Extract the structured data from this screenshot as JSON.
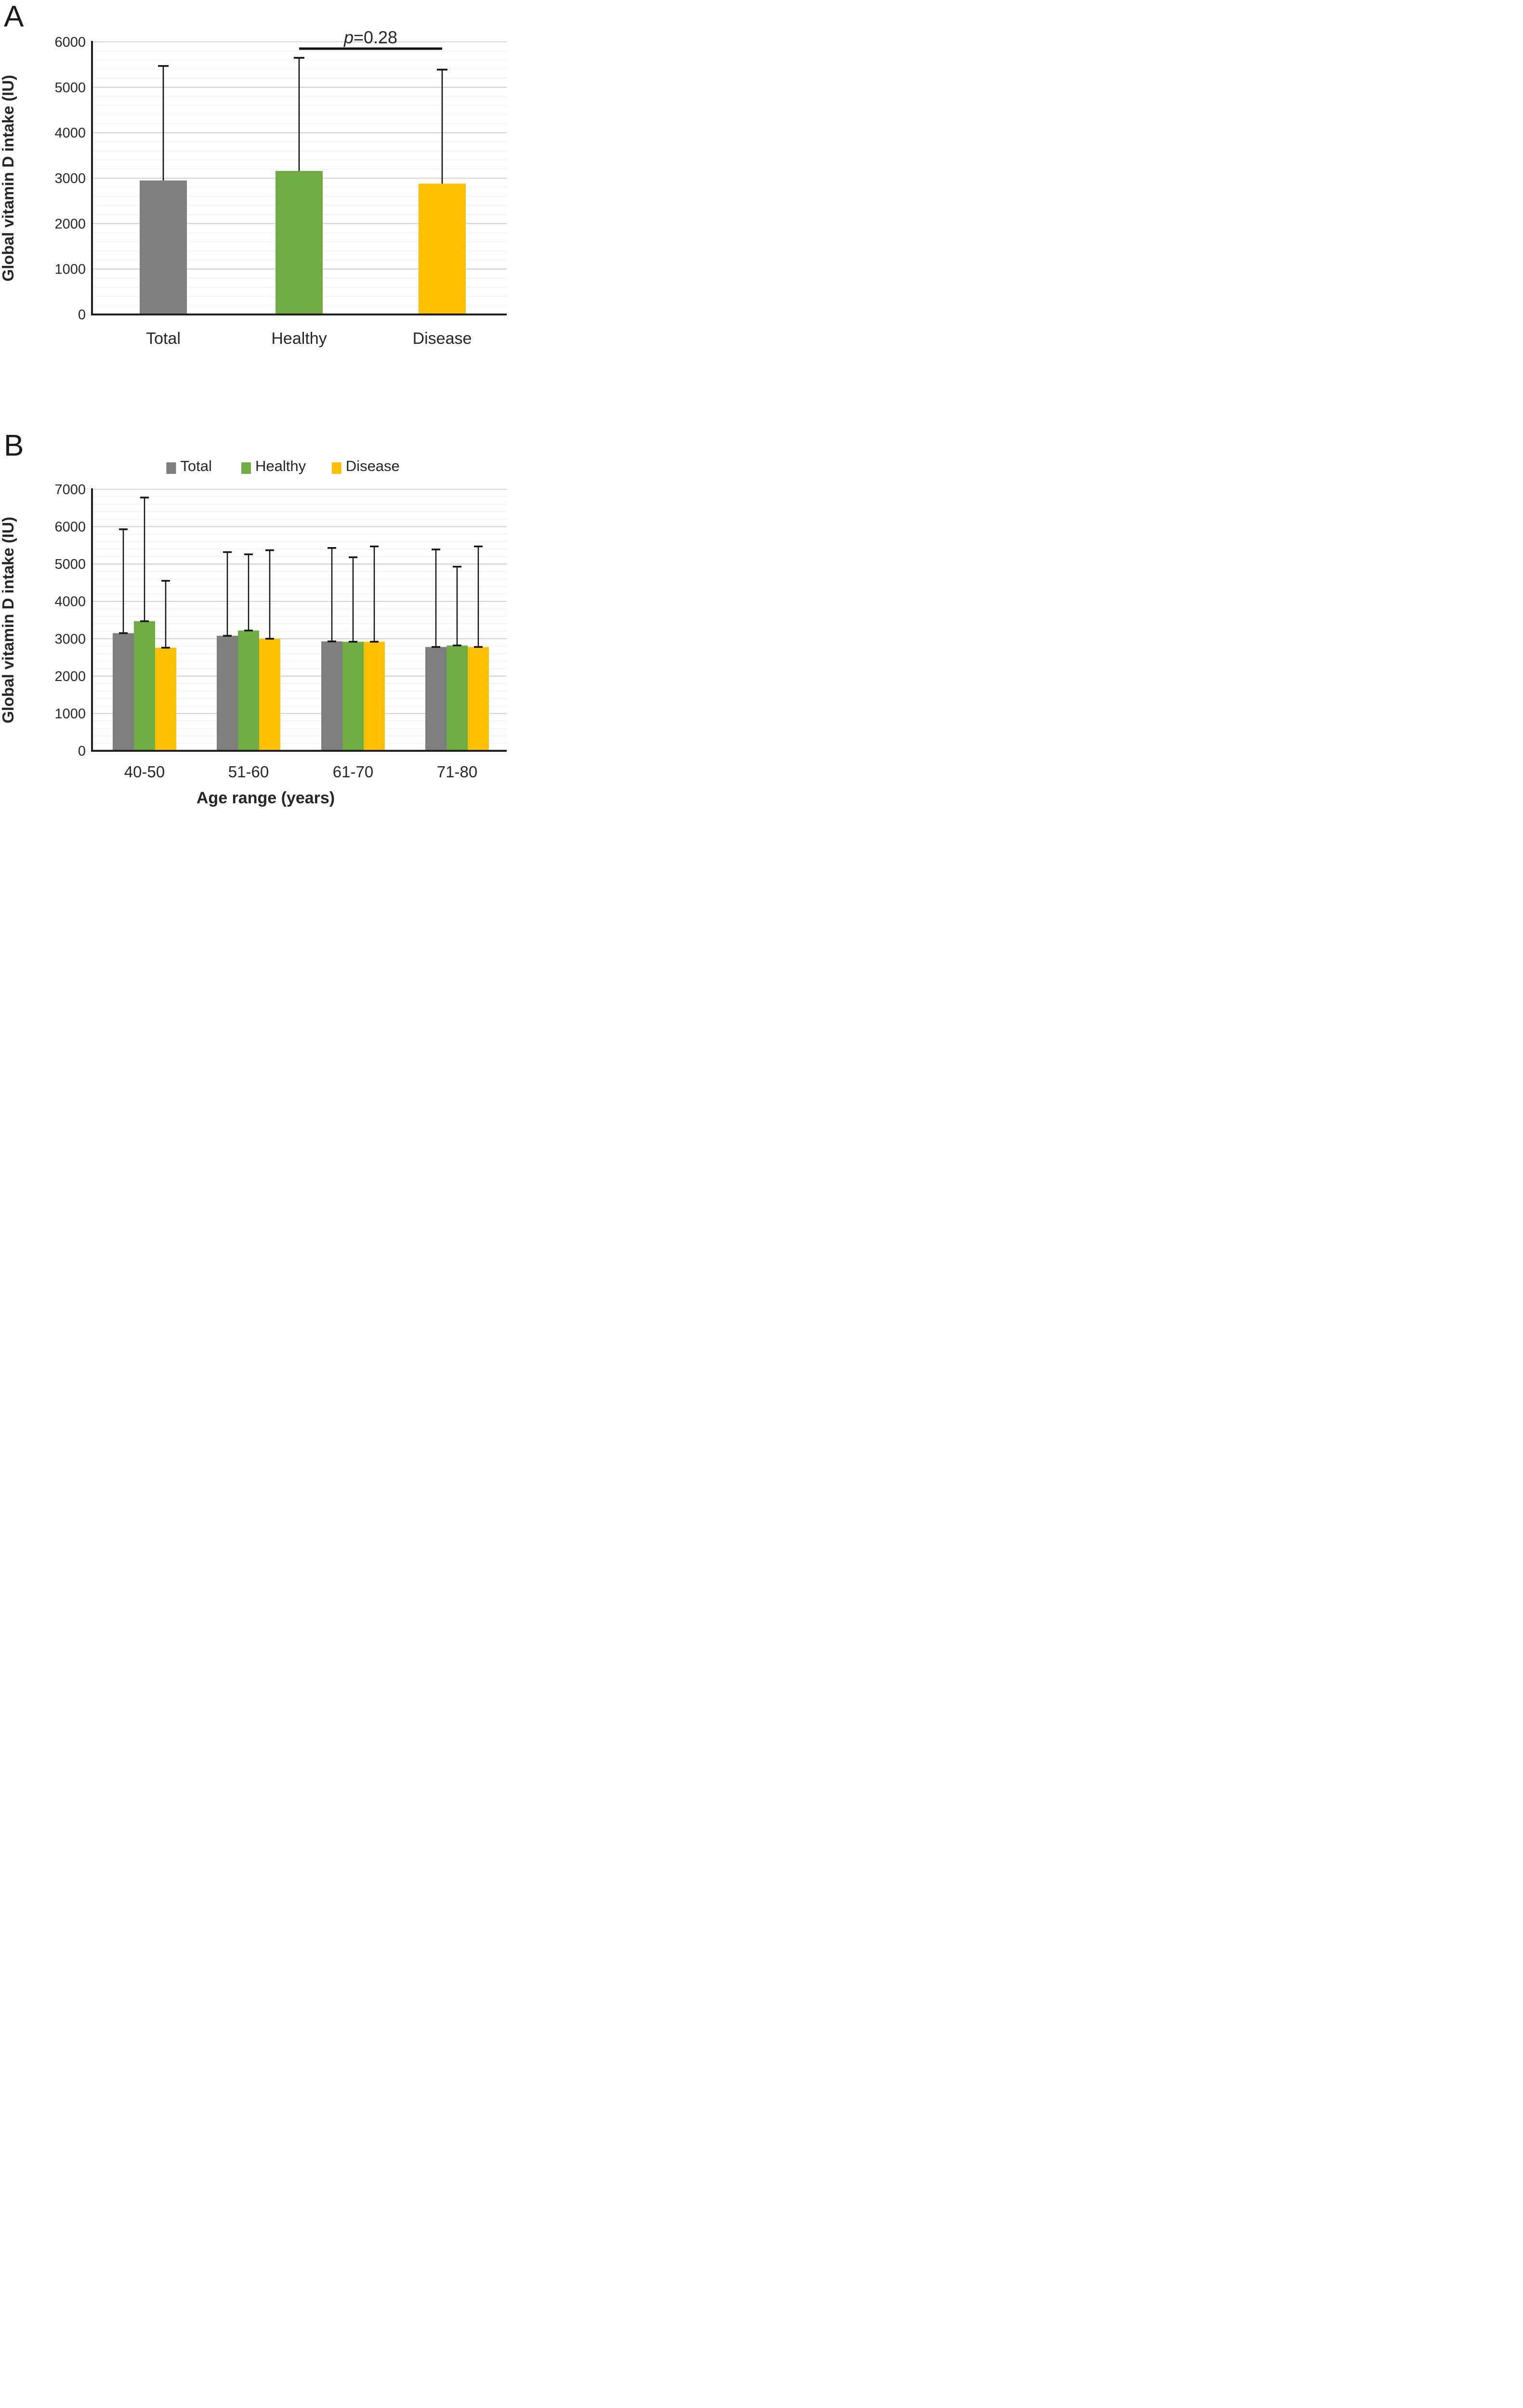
{
  "figure_title": "",
  "chart_data": [
    {
      "tag": "A",
      "type": "bar",
      "categories": [
        "Total",
        "Healthy",
        "Disease"
      ],
      "values": [
        2950,
        3160,
        2880
      ],
      "error_tops": [
        5470,
        5650,
        5390
      ],
      "bar_colors": [
        "#7F7F7F",
        "#6FAC46",
        "#FFC000"
      ],
      "ylabel": "Global vitamin D intake (IU)",
      "xlabel": "",
      "ylim": [
        0,
        6000
      ],
      "ytick_step": 1000,
      "minor_step": 200,
      "grid": "on",
      "annotation": {
        "text": "p=0.28",
        "from_category": "Healthy",
        "to_category": "Disease"
      }
    },
    {
      "tag": "B",
      "type": "bar",
      "categories": [
        "40-50",
        "51-60",
        "61-70",
        "71-80"
      ],
      "series": [
        {
          "name": "Total",
          "color": "#7F7F7F",
          "values": [
            3150,
            3080,
            2930,
            2780
          ],
          "error_tops": [
            5930,
            5320,
            5430,
            5390
          ]
        },
        {
          "name": "Healthy",
          "color": "#6FAC46",
          "values": [
            3470,
            3220,
            2920,
            2820
          ],
          "error_tops": [
            6780,
            5260,
            5180,
            4930
          ]
        },
        {
          "name": "Disease",
          "color": "#FFC000",
          "values": [
            2760,
            3000,
            2920,
            2780
          ],
          "error_tops": [
            4550,
            5370,
            5470,
            5470
          ]
        }
      ],
      "ylabel": "Global vitamin D intake (IU)",
      "xlabel": "Age range (years)",
      "ylim": [
        0,
        7000
      ],
      "ytick_step": 1000,
      "minor_step": 200,
      "grid": "on",
      "legend_position": "top"
    }
  ],
  "colors": {
    "axis": "#1f1f1f",
    "major_grid": "#c6c6c6",
    "minor_grid": "#ececec",
    "error_bar": "#111111",
    "text": "#262626"
  }
}
